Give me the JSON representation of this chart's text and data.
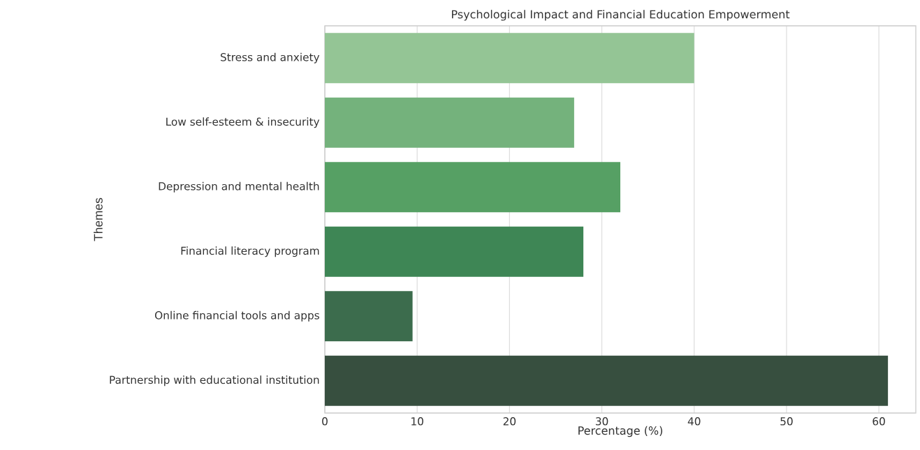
{
  "chart_data": {
    "type": "bar",
    "orientation": "horizontal",
    "title": "Psychological Impact and Financial Education Empowerment",
    "xlabel": "Percentage (%)",
    "ylabel": "Themes",
    "categories": [
      "Stress and anxiety",
      "Low self-esteem & insecurity",
      "Depression and mental health",
      "Financial literacy program",
      "Online financial tools and apps",
      "Partnership with educational institution"
    ],
    "values": [
      40,
      27,
      32,
      28,
      9.5,
      61
    ],
    "colors": [
      "#94c595",
      "#74b27c",
      "#56a064",
      "#3e8655",
      "#3c6c4d",
      "#374f3f"
    ],
    "xlim": [
      0,
      64
    ],
    "xticks": [
      0,
      10,
      20,
      30,
      40,
      50,
      60
    ],
    "grid": "x"
  }
}
